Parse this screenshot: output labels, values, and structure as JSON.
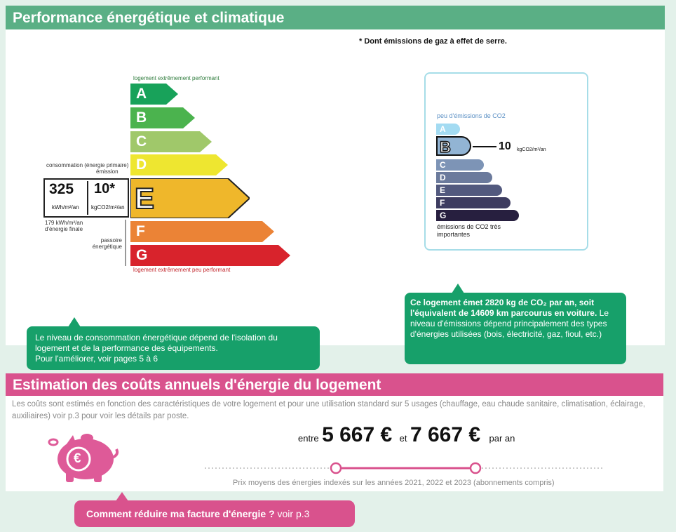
{
  "energy": {
    "title": "Performance énergétique et climatique",
    "top_label": "logement extrêmement performant",
    "bottom_label": "logement extrêmement peu performant",
    "consumption_label": "consommation (énergie primaire)",
    "emission_label": "émission",
    "consumption_value": "325",
    "consumption_unit": "kWh/m²/an",
    "emission_value": "10*",
    "emission_unit": "kgCO2/m²/an",
    "final_energy_note": "179 kWh/m²/an d'énergie finale",
    "sieve_label": "passoire énergétique",
    "classes": [
      {
        "letter": "A",
        "color": "#18a25a"
      },
      {
        "letter": "B",
        "color": "#4bb34e"
      },
      {
        "letter": "C",
        "color": "#a0c86a"
      },
      {
        "letter": "D",
        "color": "#eee630"
      },
      {
        "letter": "E",
        "color": "#efb72b"
      },
      {
        "letter": "F",
        "color": "#eb8336"
      },
      {
        "letter": "G",
        "color": "#d8232c"
      }
    ],
    "current_class": "E",
    "info_bubble": "Le niveau de consommation énergétique dépend de l'isolation du logement et de la performance des équipements.\nPour l'améliorer, voir pages 5 à 6"
  },
  "ges": {
    "footnote": "* Dont émissions de gaz à effet de serre.",
    "top_label": "peu d'émissions de CO2",
    "bottom_label": "émissions de CO2 très importantes",
    "value": "10",
    "unit": "kgCO2/m²/an",
    "current_class": "B",
    "classes": [
      {
        "letter": "A",
        "color": "#a3dbf2"
      },
      {
        "letter": "B",
        "color": "#92b4d4"
      },
      {
        "letter": "C",
        "color": "#7d94b6"
      },
      {
        "letter": "D",
        "color": "#6b7a9c"
      },
      {
        "letter": "E",
        "color": "#52597e"
      },
      {
        "letter": "F",
        "color": "#3d3c60"
      },
      {
        "letter": "G",
        "color": "#271f3f"
      }
    ],
    "info_bubble_bold": "Ce logement émet 2820  kg de CO₂ par an, soit l'équivalent de 14609 km parcourus en voiture.",
    "info_bubble_rest": "Le niveau d'émissions dépend principalement des types d'énergies utilisées (bois, électricité, gaz, fioul, etc.)"
  },
  "costs": {
    "title": "Estimation des coûts annuels d'énergie du logement",
    "description": "Les coûts sont estimés en fonction des caractéristiques de votre logement et pour une utilisation standard sur 5 usages (chauffage, eau chaude sanitaire, climatisation, éclairage, auxiliaires) voir p.3 pour voir les détails par poste.",
    "between": "entre",
    "min": "5 667 €",
    "and": "et",
    "max": "7 667 €",
    "per_year": "par an",
    "price_note": "Prix moyens des énergies indexés sur les années 2021, 2022 et 2023  (abonnements compris)",
    "button_bold": "Comment réduire ma facture d'énergie ?",
    "button_rest": "voir p.3",
    "euro_symbol": "€"
  }
}
